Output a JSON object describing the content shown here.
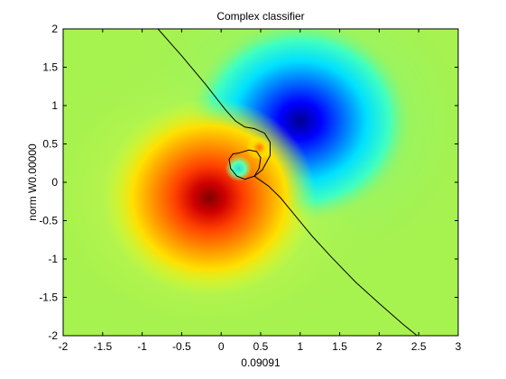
{
  "chart_data": {
    "type": "heatmap",
    "title": "Complex classifier",
    "xlabel": "0.09091",
    "ylabel": "norm W0.00000",
    "xlim": [
      -2,
      3
    ],
    "ylim": [
      -2,
      2
    ],
    "xticks": [
      "-2",
      "-1.5",
      "-1",
      "-0.5",
      "0",
      "0.5",
      "1",
      "1.5",
      "2",
      "2.5",
      "3"
    ],
    "yticks": [
      "2",
      "1.5",
      "1",
      "0.5",
      "0",
      "-0.5",
      "-1",
      "-1.5",
      "-2"
    ],
    "colormap": "jet",
    "background_color": "#a6f24f",
    "field_features": [
      {
        "kind": "minimum",
        "x": 1.0,
        "y": 0.8,
        "color": "#00008f"
      },
      {
        "kind": "maximum",
        "x": -0.15,
        "y": -0.2,
        "color": "#8f0000"
      },
      {
        "kind": "maximum",
        "x": 0.48,
        "y": 0.45,
        "color": "#ff8000"
      },
      {
        "kind": "minimum",
        "x": 0.22,
        "y": 0.18,
        "color": "#30ffd0"
      }
    ],
    "decision_boundary": {
      "color": "#000000",
      "points": [
        [
          -0.8,
          2.0
        ],
        [
          -0.5,
          1.65
        ],
        [
          -0.2,
          1.28
        ],
        [
          0.05,
          0.95
        ],
        [
          0.18,
          0.8
        ],
        [
          0.3,
          0.72
        ],
        [
          0.42,
          0.7
        ],
        [
          0.55,
          0.64
        ],
        [
          0.62,
          0.52
        ],
        [
          0.62,
          0.35
        ],
        [
          0.52,
          0.16
        ],
        [
          0.42,
          0.08
        ],
        [
          0.6,
          -0.05
        ],
        [
          0.75,
          -0.2
        ],
        [
          0.95,
          -0.45
        ],
        [
          1.15,
          -0.7
        ],
        [
          1.4,
          -0.98
        ],
        [
          1.7,
          -1.3
        ],
        [
          2.0,
          -1.58
        ],
        [
          2.3,
          -1.85
        ],
        [
          2.48,
          -2.0
        ]
      ],
      "loop": [
        [
          0.22,
          0.38
        ],
        [
          0.35,
          0.42
        ],
        [
          0.45,
          0.4
        ],
        [
          0.5,
          0.32
        ],
        [
          0.48,
          0.18
        ],
        [
          0.42,
          0.08
        ],
        [
          0.3,
          0.04
        ],
        [
          0.2,
          0.08
        ],
        [
          0.12,
          0.18
        ],
        [
          0.1,
          0.3
        ],
        [
          0.15,
          0.37
        ],
        [
          0.22,
          0.38
        ]
      ]
    }
  }
}
